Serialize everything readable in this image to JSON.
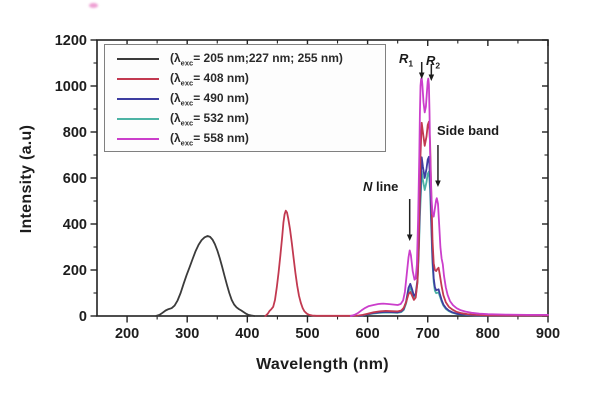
{
  "figure": {
    "x_axis_label": "Wavelength (nm)",
    "y_axis_label": "Intensity (a.u)"
  },
  "legend": {
    "items": [
      {
        "open": "(λ",
        "sub": "exc",
        "rest": "= 205 nm;227 nm; 255 nm)",
        "color": "#3b3b3b"
      },
      {
        "open": "(λ",
        "sub": "exc",
        "rest": "= 408 nm)",
        "color": "#c23950"
      },
      {
        "open": "(λ",
        "sub": "exc",
        "rest": "= 490 nm)",
        "color": "#3d3da0"
      },
      {
        "open": "(λ",
        "sub": "exc",
        "rest": "= 532 nm)",
        "color": "#4db3a4"
      },
      {
        "open": "(λ",
        "sub": "exc",
        "rest": "= 558 nm)",
        "color": "#cb3ecb"
      }
    ]
  },
  "annotations": {
    "r1": {
      "text": "R",
      "sub": "1"
    },
    "r2": {
      "text": "R",
      "sub": "2"
    },
    "n_line": {
      "italic": "N",
      "text": " line"
    },
    "side_band": {
      "text": "Side band"
    }
  },
  "chart_data": {
    "type": "line",
    "title": "",
    "xlabel": "Wavelength (nm)",
    "ylabel": "Intensity (a.u)",
    "xlim": [
      150,
      900
    ],
    "ylim": [
      0,
      1200
    ],
    "xticks": [
      200,
      300,
      400,
      500,
      600,
      700,
      800,
      900
    ],
    "yticks": [
      0,
      200,
      400,
      600,
      800,
      1000,
      1200
    ],
    "x_minor_step": 50,
    "y_minor_step": 100,
    "grid": false,
    "legend_position": "upper-left-inside",
    "frame_color": "#222222",
    "annotations": [
      {
        "label": "R1",
        "wavelength_nm": 690
      },
      {
        "label": "R2",
        "wavelength_nm": 706
      },
      {
        "label": "N line",
        "wavelength_nm": 670
      },
      {
        "label": "Side band",
        "wavelength_nm": 717
      }
    ],
    "series": [
      {
        "name": "λexc = 205 nm; 227 nm; 255 nm",
        "color": "#3b3b3b",
        "points": [
          [
            248,
            0
          ],
          [
            254,
            5
          ],
          [
            259,
            14
          ],
          [
            264,
            24
          ],
          [
            269,
            30
          ],
          [
            274,
            34
          ],
          [
            279,
            45
          ],
          [
            284,
            68
          ],
          [
            289,
            100
          ],
          [
            294,
            140
          ],
          [
            299,
            178
          ],
          [
            304,
            212
          ],
          [
            309,
            248
          ],
          [
            314,
            282
          ],
          [
            319,
            310
          ],
          [
            324,
            330
          ],
          [
            329,
            342
          ],
          [
            334,
            348
          ],
          [
            338,
            344
          ],
          [
            342,
            332
          ],
          [
            346,
            312
          ],
          [
            350,
            285
          ],
          [
            354,
            252
          ],
          [
            358,
            215
          ],
          [
            362,
            175
          ],
          [
            366,
            136
          ],
          [
            370,
            100
          ],
          [
            374,
            70
          ],
          [
            378,
            50
          ],
          [
            382,
            38
          ],
          [
            386,
            30
          ],
          [
            390,
            24
          ],
          [
            394,
            17
          ],
          [
            398,
            10
          ],
          [
            402,
            5
          ],
          [
            407,
            2
          ],
          [
            412,
            0
          ]
        ]
      },
      {
        "name": "λexc = 408 nm",
        "color": "#c23950",
        "points": [
          [
            430,
            0
          ],
          [
            434,
            10
          ],
          [
            437,
            22
          ],
          [
            440,
            30
          ],
          [
            443,
            40
          ],
          [
            446,
            70
          ],
          [
            449,
            125
          ],
          [
            452,
            190
          ],
          [
            455,
            265
          ],
          [
            458,
            345
          ],
          [
            460,
            405
          ],
          [
            462,
            442
          ],
          [
            464,
            458
          ],
          [
            466,
            450
          ],
          [
            468,
            425
          ],
          [
            471,
            378
          ],
          [
            474,
            318
          ],
          [
            477,
            252
          ],
          [
            480,
            188
          ],
          [
            483,
            132
          ],
          [
            486,
            88
          ],
          [
            489,
            56
          ],
          [
            492,
            34
          ],
          [
            495,
            20
          ],
          [
            499,
            10
          ],
          [
            503,
            5
          ],
          [
            508,
            2
          ],
          [
            515,
            1
          ],
          [
            545,
            1
          ],
          [
            570,
            1
          ],
          [
            585,
            2
          ],
          [
            592,
            5
          ],
          [
            600,
            10
          ],
          [
            610,
            16
          ],
          [
            620,
            20
          ],
          [
            630,
            22
          ],
          [
            640,
            21
          ],
          [
            650,
            20
          ],
          [
            656,
            24
          ],
          [
            660,
            35
          ],
          [
            664,
            60
          ],
          [
            668,
            95
          ],
          [
            671,
            105
          ],
          [
            674,
            88
          ],
          [
            677,
            70
          ],
          [
            680,
            80
          ],
          [
            683,
            150
          ],
          [
            685,
            300
          ],
          [
            687,
            550
          ],
          [
            688,
            700
          ],
          [
            690,
            840
          ],
          [
            692,
            800
          ],
          [
            695,
            740
          ],
          [
            698,
            780
          ],
          [
            700,
            830
          ],
          [
            702,
            845
          ],
          [
            704,
            750
          ],
          [
            706,
            540
          ],
          [
            708,
            330
          ],
          [
            710,
            230
          ],
          [
            712,
            200
          ],
          [
            714,
            195
          ],
          [
            716,
            205
          ],
          [
            718,
            210
          ],
          [
            720,
            180
          ],
          [
            723,
            130
          ],
          [
            726,
            90
          ],
          [
            730,
            60
          ],
          [
            735,
            40
          ],
          [
            741,
            28
          ],
          [
            748,
            18
          ],
          [
            756,
            12
          ],
          [
            766,
            8
          ],
          [
            780,
            5
          ],
          [
            800,
            3
          ],
          [
            840,
            2
          ],
          [
            900,
            2
          ]
        ]
      },
      {
        "name": "λexc = 490 nm",
        "color": "#3d3da0",
        "points": [
          [
            585,
            0
          ],
          [
            592,
            3
          ],
          [
            600,
            8
          ],
          [
            610,
            13
          ],
          [
            620,
            16
          ],
          [
            630,
            18
          ],
          [
            640,
            17
          ],
          [
            650,
            16
          ],
          [
            656,
            20
          ],
          [
            660,
            30
          ],
          [
            664,
            62
          ],
          [
            668,
            122
          ],
          [
            671,
            140
          ],
          [
            674,
            116
          ],
          [
            677,
            88
          ],
          [
            680,
            96
          ],
          [
            683,
            160
          ],
          [
            685,
            290
          ],
          [
            687,
            480
          ],
          [
            689,
            610
          ],
          [
            690,
            690
          ],
          [
            692,
            650
          ],
          [
            695,
            600
          ],
          [
            698,
            640
          ],
          [
            700,
            680
          ],
          [
            702,
            692
          ],
          [
            704,
            600
          ],
          [
            706,
            420
          ],
          [
            708,
            255
          ],
          [
            710,
            165
          ],
          [
            712,
            125
          ],
          [
            714,
            112
          ],
          [
            716,
            114
          ],
          [
            718,
            116
          ],
          [
            720,
            96
          ],
          [
            723,
            70
          ],
          [
            726,
            50
          ],
          [
            730,
            35
          ],
          [
            735,
            24
          ],
          [
            741,
            16
          ],
          [
            748,
            10
          ],
          [
            756,
            7
          ],
          [
            766,
            5
          ],
          [
            780,
            3
          ],
          [
            800,
            2
          ],
          [
            850,
            2
          ],
          [
            900,
            2
          ]
        ]
      },
      {
        "name": "λexc = 532 nm",
        "color": "#4db3a4",
        "points": [
          [
            585,
            0
          ],
          [
            592,
            3
          ],
          [
            600,
            7
          ],
          [
            610,
            11
          ],
          [
            620,
            14
          ],
          [
            630,
            15
          ],
          [
            640,
            15
          ],
          [
            650,
            14
          ],
          [
            656,
            17
          ],
          [
            660,
            26
          ],
          [
            664,
            54
          ],
          [
            668,
            108
          ],
          [
            671,
            122
          ],
          [
            674,
            102
          ],
          [
            677,
            78
          ],
          [
            680,
            86
          ],
          [
            683,
            146
          ],
          [
            685,
            262
          ],
          [
            687,
            432
          ],
          [
            689,
            555
          ],
          [
            690,
            628
          ],
          [
            692,
            592
          ],
          [
            695,
            548
          ],
          [
            698,
            582
          ],
          [
            700,
            618
          ],
          [
            702,
            628
          ],
          [
            704,
            548
          ],
          [
            706,
            382
          ],
          [
            708,
            228
          ],
          [
            710,
            148
          ],
          [
            712,
            110
          ],
          [
            714,
            99
          ],
          [
            716,
            101
          ],
          [
            718,
            103
          ],
          [
            720,
            86
          ],
          [
            723,
            63
          ],
          [
            726,
            45
          ],
          [
            730,
            31
          ],
          [
            735,
            21
          ],
          [
            741,
            14
          ],
          [
            748,
            9
          ],
          [
            756,
            6
          ],
          [
            766,
            4
          ],
          [
            780,
            3
          ],
          [
            800,
            2
          ],
          [
            850,
            2
          ],
          [
            900,
            2
          ]
        ]
      },
      {
        "name": "λexc = 558 nm",
        "color": "#cb3ecb",
        "points": [
          [
            572,
            0
          ],
          [
            578,
            5
          ],
          [
            584,
            13
          ],
          [
            590,
            25
          ],
          [
            596,
            35
          ],
          [
            602,
            43
          ],
          [
            610,
            48
          ],
          [
            618,
            52
          ],
          [
            626,
            54
          ],
          [
            634,
            52
          ],
          [
            642,
            50
          ],
          [
            650,
            48
          ],
          [
            655,
            52
          ],
          [
            659,
            68
          ],
          [
            662,
            105
          ],
          [
            665,
            180
          ],
          [
            668,
            255
          ],
          [
            670,
            285
          ],
          [
            672,
            265
          ],
          [
            675,
            195
          ],
          [
            678,
            158
          ],
          [
            680,
            163
          ],
          [
            682,
            225
          ],
          [
            684,
            420
          ],
          [
            686,
            700
          ],
          [
            687,
            880
          ],
          [
            688,
            1000
          ],
          [
            689,
            1030
          ],
          [
            690,
            1035
          ],
          [
            691,
            1010
          ],
          [
            693,
            930
          ],
          [
            695,
            885
          ],
          [
            697,
            910
          ],
          [
            699,
            985
          ],
          [
            700,
            1020
          ],
          [
            701,
            1032
          ],
          [
            702,
            1005
          ],
          [
            703,
            890
          ],
          [
            704,
            710
          ],
          [
            706,
            525
          ],
          [
            708,
            445
          ],
          [
            710,
            432
          ],
          [
            712,
            468
          ],
          [
            714,
            505
          ],
          [
            715,
            512
          ],
          [
            717,
            488
          ],
          [
            719,
            395
          ],
          [
            721,
            300
          ],
          [
            723,
            250
          ],
          [
            725,
            225
          ],
          [
            727,
            175
          ],
          [
            730,
            125
          ],
          [
            733,
            92
          ],
          [
            737,
            65
          ],
          [
            742,
            47
          ],
          [
            748,
            34
          ],
          [
            755,
            25
          ],
          [
            763,
            19
          ],
          [
            773,
            14
          ],
          [
            786,
            10
          ],
          [
            800,
            8
          ],
          [
            830,
            6
          ],
          [
            865,
            5
          ],
          [
            900,
            5
          ]
        ]
      }
    ]
  }
}
